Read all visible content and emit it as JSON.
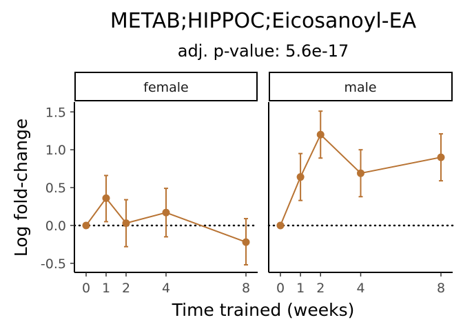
{
  "chart_data": {
    "type": "line",
    "title": "METAB;HIPPOC;Eicosanoyl-EA",
    "subtitle": "adj. p-value: 5.6e-17",
    "xlabel": "Time trained (weeks)",
    "ylabel": "Log fold-change",
    "x_ticks": [
      0,
      1,
      2,
      4,
      8
    ],
    "x_tick_labels": [
      "0",
      "1",
      "2",
      "4",
      "8"
    ],
    "y_ticks": [
      -0.5,
      0.0,
      0.5,
      1.0,
      1.5
    ],
    "y_tick_labels": [
      "-0.5",
      "0.0",
      "0.5",
      "1.0",
      "1.5"
    ],
    "ylim": [
      -0.62,
      1.63
    ],
    "xlim": [
      -0.4,
      8.4
    ],
    "reference_line": 0,
    "grid": false,
    "series_color": "#B87333",
    "facets": [
      {
        "label": "female",
        "x": [
          0,
          1,
          2,
          4,
          8
        ],
        "y": [
          0.0,
          0.36,
          0.03,
          0.17,
          -0.22
        ],
        "err_low": [
          0.0,
          0.05,
          -0.28,
          -0.15,
          -0.52
        ],
        "err_high": [
          0.0,
          0.66,
          0.34,
          0.49,
          0.09
        ]
      },
      {
        "label": "male",
        "x": [
          0,
          1,
          2,
          4,
          8
        ],
        "y": [
          0.0,
          0.64,
          1.2,
          0.69,
          0.9
        ],
        "err_low": [
          0.0,
          0.33,
          0.89,
          0.38,
          0.59
        ],
        "err_high": [
          0.0,
          0.95,
          1.51,
          1.0,
          1.21
        ]
      }
    ]
  }
}
